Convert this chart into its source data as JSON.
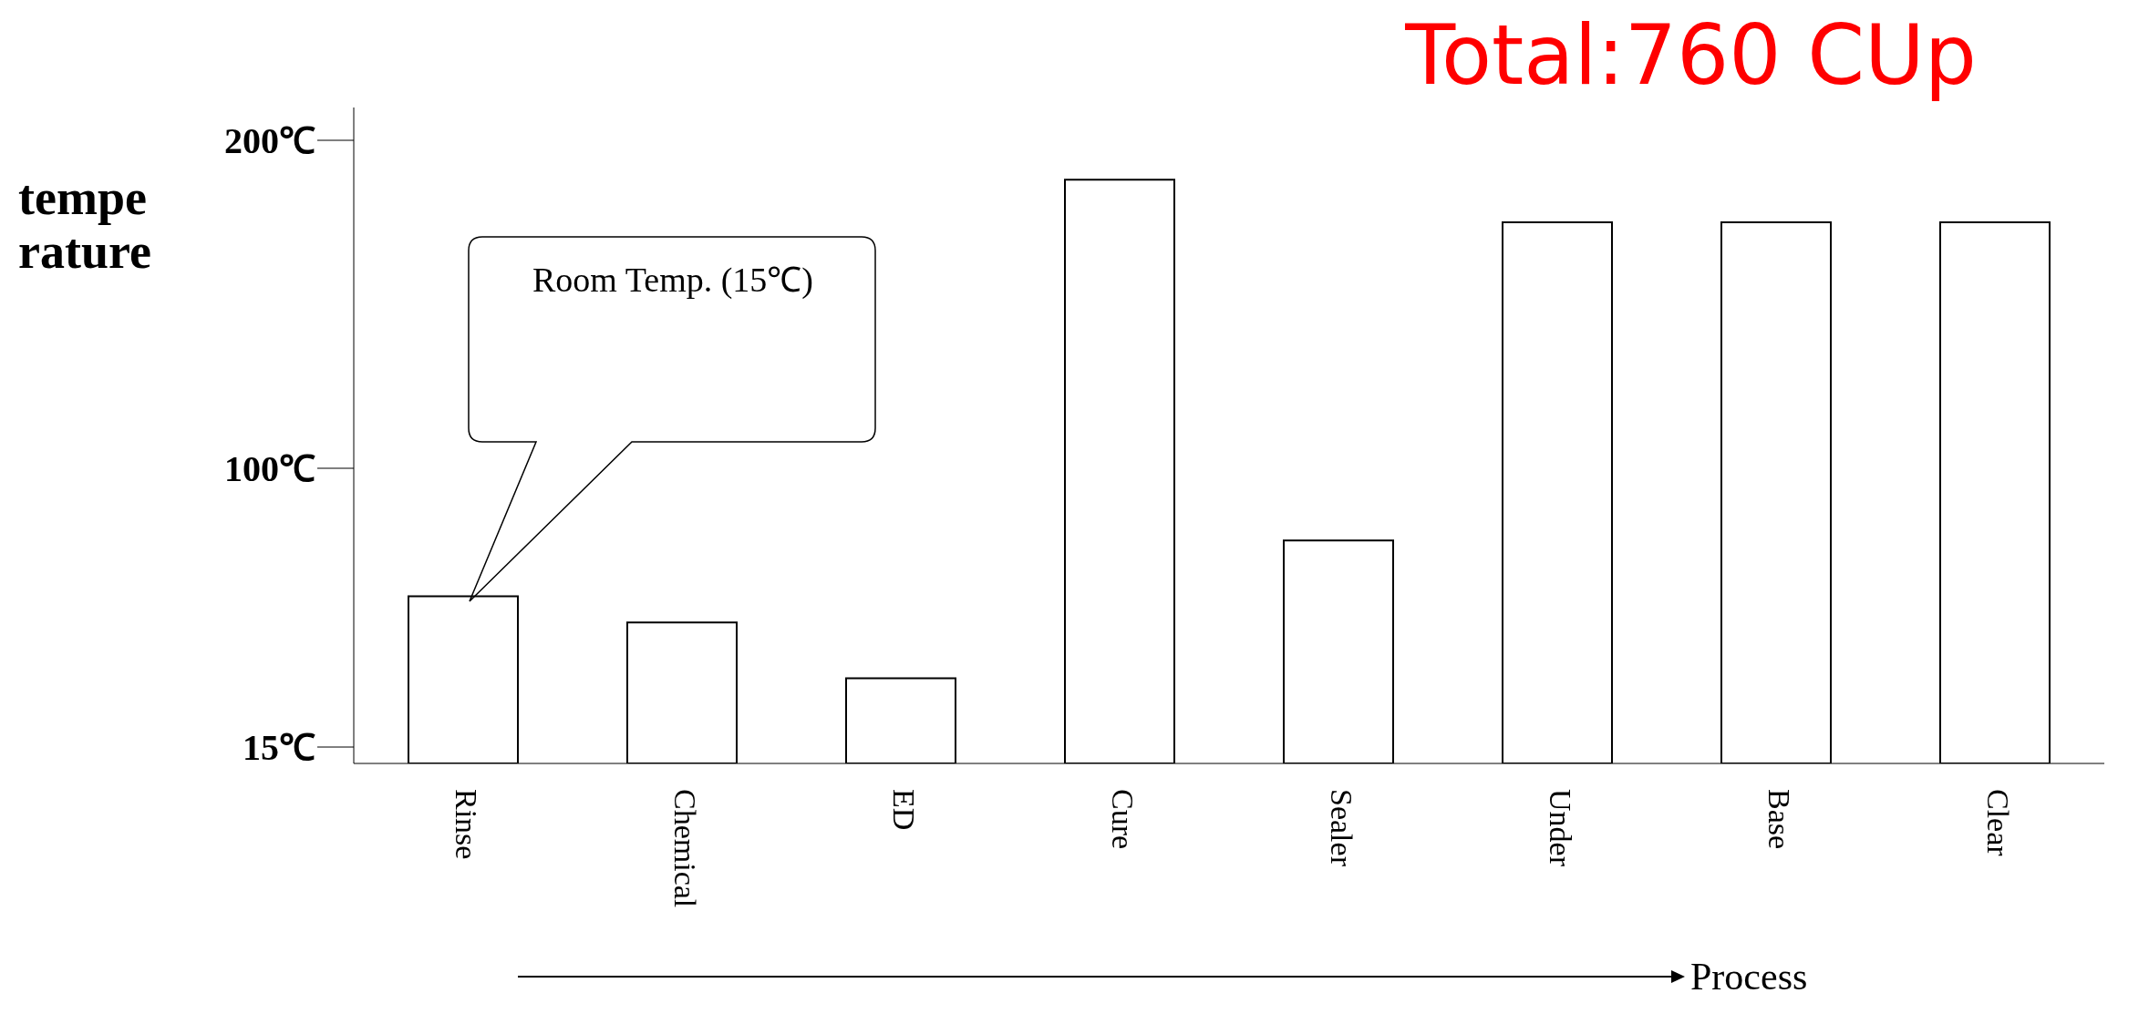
{
  "chart_data": {
    "type": "bar",
    "title": "Total:760 CUp",
    "xlabel": "Process",
    "ylabel": "tempe rature",
    "categories": [
      "Rinse",
      "Chemical",
      "ED",
      "Cure",
      "Sealer",
      "Under",
      "Base",
      "Clear"
    ],
    "series": [
      {
        "color": "#000000",
        "values": [
          61,
          53,
          36,
          188,
          78,
          175,
          175,
          175
        ]
      }
    ],
    "ylim": [
      10,
      210
    ],
    "yticks": [
      {
        "value": 15,
        "label": "15℃"
      },
      {
        "value": 100,
        "label": "100℃"
      },
      {
        "value": 200,
        "label": "200℃"
      }
    ],
    "grid": false,
    "legend": false,
    "annotations": [
      "Room Temp. (15℃)"
    ]
  }
}
